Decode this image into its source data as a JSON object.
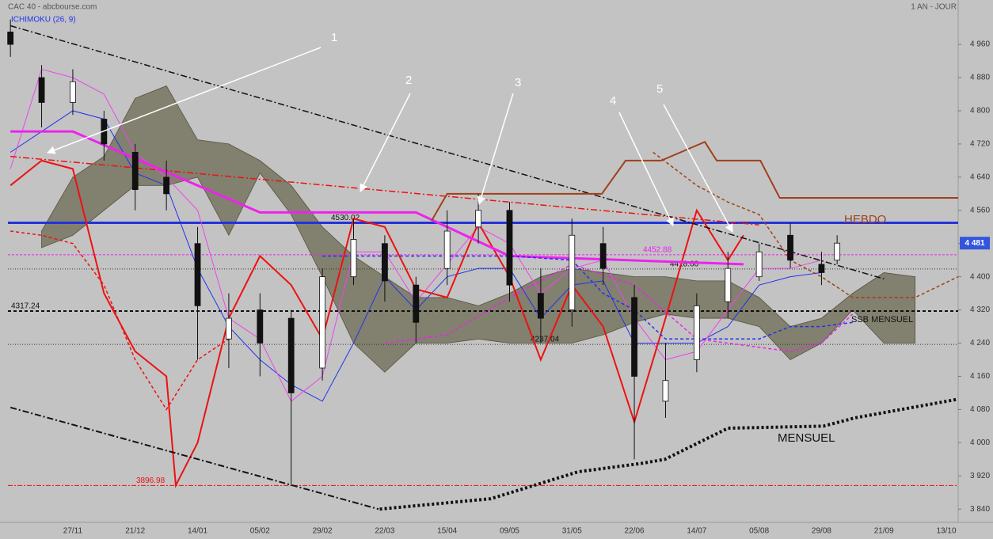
{
  "chart_data": {
    "type": "candlestick",
    "title": "CAC 40 - abcbourse.com",
    "subtitle": "1 AN - JOUR",
    "indicator": "ICHIMOKU (26, 9)",
    "categories": [
      "27/11",
      "21/12",
      "14/01",
      "05/02",
      "29/02",
      "22/03",
      "15/04",
      "09/05",
      "31/05",
      "22/06",
      "14/07",
      "05/08",
      "29/08",
      "21/09",
      "13/10"
    ],
    "xlim": [
      -1.04,
      14.19
    ],
    "ylim": [
      3808,
      5067
    ],
    "yticks": [
      {
        "value": 4960,
        "label": "4 960"
      },
      {
        "value": 4880,
        "label": "4 880"
      },
      {
        "value": 4800,
        "label": "4 800"
      },
      {
        "value": 4720,
        "label": "4 720"
      },
      {
        "value": 4640,
        "label": "4 640"
      },
      {
        "value": 4560,
        "label": "4 560"
      },
      {
        "value": 4480,
        "label": "4 480"
      },
      {
        "value": 4400,
        "label": "4 400"
      },
      {
        "value": 4320,
        "label": "4 320"
      },
      {
        "value": 4240,
        "label": "4 240"
      },
      {
        "value": 4160,
        "label": "4 160"
      },
      {
        "value": 4080,
        "label": "4 080"
      },
      {
        "value": 4000,
        "label": "4 000"
      },
      {
        "value": 3920,
        "label": "3 920"
      },
      {
        "value": 3840,
        "label": "3 840"
      }
    ],
    "last": {
      "value": 4481,
      "label": "4 481",
      "color": "#3355dd"
    },
    "candles": {
      "x": [
        -1,
        -0.5,
        0,
        0.5,
        1,
        1.5,
        2,
        2.5,
        3,
        3.5,
        4,
        4.5,
        5,
        5.5,
        6,
        6.5,
        7,
        7.5,
        8,
        8.5,
        9,
        9.5,
        10,
        10.5,
        11,
        11.5,
        12,
        12.25
      ],
      "open": [
        4990,
        4880,
        4820,
        4780,
        4700,
        4640,
        4480,
        4250,
        4320,
        4300,
        4180,
        4400,
        4480,
        4380,
        4420,
        4520,
        4560,
        4360,
        4320,
        4480,
        4350,
        4100,
        4200,
        4340,
        4400,
        4500,
        4430,
        4440
      ],
      "high": [
        5020,
        4910,
        4900,
        4800,
        4720,
        4680,
        4520,
        4360,
        4360,
        4320,
        4420,
        4540,
        4500,
        4400,
        4560,
        4600,
        4580,
        4420,
        4540,
        4520,
        4380,
        4240,
        4360,
        4460,
        4480,
        4530,
        4460,
        4500
      ],
      "low": [
        4930,
        4760,
        4790,
        4680,
        4560,
        4560,
        4200,
        4180,
        4160,
        3900,
        4150,
        4380,
        4340,
        4240,
        4380,
        4480,
        4340,
        4240,
        4280,
        4380,
        3960,
        4060,
        4170,
        4300,
        4390,
        4420,
        4380,
        4430
      ],
      "close": [
        4960,
        4820,
        4870,
        4720,
        4610,
        4600,
        4330,
        4300,
        4240,
        4120,
        4400,
        4490,
        4390,
        4290,
        4510,
        4560,
        4380,
        4300,
        4500,
        4420,
        4160,
        4150,
        4330,
        4420,
        4460,
        4440,
        4410,
        4481
      ]
    },
    "cloud": {
      "color": "#77745f",
      "x": [
        -0.5,
        0,
        0.5,
        1,
        1.5,
        2,
        2.5,
        3,
        3.5,
        4,
        4.5,
        5,
        5.5,
        6,
        6.5,
        7,
        7.5,
        8,
        8.5,
        9,
        9.5,
        10,
        10.5,
        11,
        11.5,
        12,
        12.5,
        13,
        13.5
      ],
      "upper": [
        4510,
        4640,
        4690,
        4830,
        4860,
        4730,
        4720,
        4680,
        4620,
        4520,
        4450,
        4400,
        4350,
        4350,
        4330,
        4360,
        4400,
        4420,
        4410,
        4400,
        4400,
        4390,
        4390,
        4350,
        4280,
        4300,
        4360,
        4410,
        4400
      ],
      "lower": [
        4470,
        4500,
        4560,
        4620,
        4620,
        4640,
        4500,
        4650,
        4550,
        4400,
        4240,
        4170,
        4240,
        4240,
        4250,
        4240,
        4240,
        4240,
        4260,
        4290,
        4310,
        4300,
        4300,
        4280,
        4200,
        4240,
        4320,
        4240,
        4240
      ]
    },
    "series": [
      {
        "color": "#2233ee",
        "width": 1,
        "dash": "none",
        "x": [
          -1,
          -0.5,
          0,
          0.5,
          1,
          1.5,
          2,
          2.5,
          3,
          3.5,
          4,
          4.5,
          5,
          5.5,
          6,
          6.5,
          7,
          7.5,
          8,
          8.5,
          9,
          9.5,
          10,
          10.5,
          11,
          11.5,
          12
        ],
        "values": [
          4700,
          4750,
          4800,
          4780,
          4650,
          4620,
          4420,
          4280,
          4200,
          4140,
          4100,
          4240,
          4400,
          4320,
          4400,
          4420,
          4420,
          4300,
          4380,
          4390,
          4240,
          4240,
          4240,
          4280,
          4380,
          4400,
          4410
        ]
      },
      {
        "color": "#ee44ee",
        "width": 1,
        "dash": "none",
        "x": [
          -1,
          -0.5,
          0,
          0.5,
          1,
          1.5,
          2,
          2.5,
          3,
          3.5,
          4,
          4.5,
          5,
          5.5,
          6,
          6.5,
          7,
          7.5,
          8,
          8.5,
          9,
          9.5,
          10,
          10.5,
          11,
          11.5,
          12
        ],
        "values": [
          4660,
          4900,
          4880,
          4840,
          4700,
          4640,
          4560,
          4300,
          4250,
          4100,
          4160,
          4460,
          4460,
          4340,
          4430,
          4520,
          4480,
          4360,
          4420,
          4440,
          4300,
          4200,
          4220,
          4320,
          4420,
          4420,
          4440
        ]
      },
      {
        "color": "#ee1111",
        "width": 2,
        "dash": "none",
        "x": [
          -1,
          -0.5,
          0,
          0.5,
          1,
          1.5,
          1.65,
          2,
          2.5,
          3,
          3.5,
          4,
          4.5,
          5,
          5.5,
          6,
          6.5,
          7,
          7.5,
          8,
          8.5,
          9,
          9.5,
          10,
          10.5,
          10.75
        ],
        "values": [
          4620,
          4680,
          4660,
          4360,
          4220,
          4160,
          3896.98,
          4000,
          4300,
          4450,
          4380,
          4250,
          4540,
          4520,
          4370,
          4350,
          4530,
          4400,
          4200,
          4380,
          4280,
          4050,
          4300,
          4560,
          4440,
          4500
        ]
      },
      {
        "color": "#ee1111",
        "width": 1.5,
        "dash": "4 3",
        "x": [
          -1,
          -0.5,
          0,
          0.5,
          1,
          1.5,
          2,
          2.5
        ],
        "values": [
          4510,
          4500,
          4480,
          4380,
          4200,
          4080,
          4200,
          4250
        ]
      },
      {
        "color": "#ee1111",
        "width": 1.5,
        "dash": "8 3 2 3",
        "x": [
          -1,
          11
        ],
        "values": [
          4690,
          4525
        ]
      },
      {
        "color": "#111111",
        "width": 1.5,
        "dash": "8 3 2 3",
        "x": [
          -1,
          13
        ],
        "values": [
          5005,
          4395
        ]
      },
      {
        "color": "#111111",
        "width": 2,
        "dash": "8 3 2 3",
        "x": [
          -1,
          4.9
        ],
        "values": [
          4085,
          3840
        ]
      },
      {
        "color": "#ee22ee",
        "width": 3,
        "dash": "none",
        "x": [
          -1,
          0,
          3,
          5.5,
          7,
          10.75
        ],
        "values": [
          4750,
          4750,
          4555,
          4555,
          4450,
          4430
        ]
      },
      {
        "color": "#ee22ee",
        "width": 1.5,
        "dash": "4 3",
        "x": [
          5,
          6,
          7,
          8,
          9,
          10,
          11,
          11.5,
          12,
          12.5
        ],
        "values": [
          4240,
          4260,
          4350,
          4430,
          4380,
          4250,
          4230,
          4220,
          4240,
          4310
        ]
      },
      {
        "color": "#2233ee",
        "width": 1.5,
        "dash": "4 3",
        "x": [
          4,
          5,
          6,
          7,
          8,
          8.5,
          9,
          9.5,
          10,
          10.5,
          11,
          11.5,
          12,
          12.5
        ],
        "values": [
          4450,
          4450,
          4450,
          4450,
          4440,
          4360,
          4320,
          4250,
          4250,
          4250,
          4250,
          4280,
          4280,
          4290
        ]
      },
      {
        "color": "#a0401a",
        "width": 1.5,
        "dash": "4 3",
        "x": [
          9.3,
          10,
          10.5,
          11,
          11.5,
          12,
          12.5,
          13,
          13.5,
          14.19
        ],
        "values": [
          4700,
          4620,
          4580,
          4550,
          4440,
          4400,
          4350,
          4350,
          4350,
          4400
        ]
      },
      {
        "name": "HEBDO",
        "color": "#a0401a",
        "width": 2,
        "dash": "none",
        "x": [
          5.75,
          6,
          8.48,
          8.86,
          9.43,
          10.13,
          10.32,
          11.02,
          11.33,
          14.19
        ],
        "values": [
          4535,
          4600,
          4600,
          4680,
          4680,
          4725,
          4680,
          4680,
          4590,
          4590
        ]
      },
      {
        "name": "MENSUEL",
        "color": "#111111",
        "width": 4,
        "dash": "3 3",
        "x": [
          4.92,
          6.7,
          8.1,
          9.11,
          9.49,
          10.5,
          12.03,
          12.54,
          14.19
        ],
        "values": [
          3840,
          3865,
          3930,
          3950,
          3960,
          4035,
          4040,
          4060,
          4105
        ]
      }
    ],
    "levels": [
      {
        "value": 4530.02,
        "color": "#2233ee",
        "width": 3,
        "dash": "none"
      },
      {
        "value": 4530.02,
        "color": "#333333",
        "width": 1,
        "dash": "1 2"
      },
      {
        "value": 4452.88,
        "color": "#ee22ee",
        "width": 1,
        "dash": "3 2"
      },
      {
        "value": {
          "value": 4418.6,
          "label": "4418.60"
        },
        "color": "#333333",
        "width": 1,
        "dash": "1 2"
      },
      {
        "value": 4317.24,
        "name": "SSB MENSUEL",
        "color": "#111111",
        "width": 2,
        "dash": "4 3"
      },
      {
        "value": 4237.04,
        "color": "#333333",
        "width": 1,
        "dash": "1 2"
      },
      {
        "value": 3896.98,
        "color": "#ee1111",
        "width": 1,
        "dash": "6 2 2 2"
      }
    ],
    "annotations": [
      "1",
      "2",
      "3",
      "4",
      "5"
    ]
  }
}
